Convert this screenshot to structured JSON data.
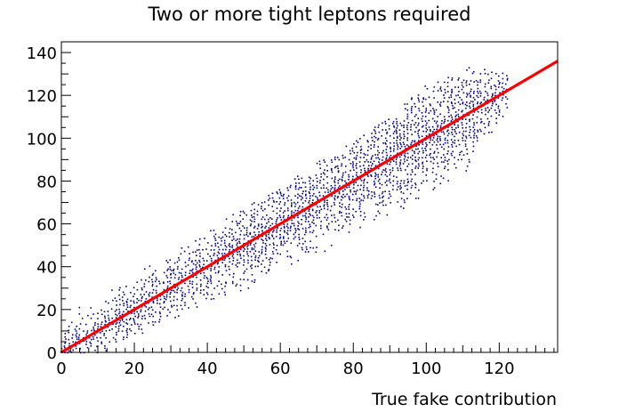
{
  "chart_data": {
    "type": "scatter",
    "title": "Two or more tight leptons required",
    "xlabel": "True fake contribution",
    "ylabel": "",
    "xlim": [
      0,
      136
    ],
    "ylim": [
      0,
      145
    ],
    "x_ticks": [
      0,
      20,
      40,
      60,
      80,
      100,
      120
    ],
    "y_ticks": [
      0,
      20,
      40,
      60,
      80,
      100,
      120,
      140
    ],
    "grid": false,
    "legend": "none",
    "colors": {
      "points": "#000080",
      "line": "#ff0000",
      "frame": "#000000"
    },
    "series": [
      {
        "type": "scatter-density",
        "description_band": "points scattered around y = x",
        "band_envelope": [
          {
            "x": 0,
            "y_min": 0,
            "y_max": 17
          },
          {
            "x": 10,
            "y_min": 0,
            "y_max": 26
          },
          {
            "x": 20,
            "y_min": 8,
            "y_max": 36
          },
          {
            "x": 30,
            "y_min": 16,
            "y_max": 46
          },
          {
            "x": 40,
            "y_min": 24,
            "y_max": 57
          },
          {
            "x": 50,
            "y_min": 30,
            "y_max": 67
          },
          {
            "x": 60,
            "y_min": 38,
            "y_max": 77
          },
          {
            "x": 70,
            "y_min": 46,
            "y_max": 88
          },
          {
            "x": 80,
            "y_min": 54,
            "y_max": 98
          },
          {
            "x": 90,
            "y_min": 64,
            "y_max": 110
          },
          {
            "x": 100,
            "y_min": 72,
            "y_max": 126
          },
          {
            "x": 110,
            "y_min": 82,
            "y_max": 134
          },
          {
            "x": 122,
            "y_min": 112,
            "y_max": 130
          }
        ]
      },
      {
        "type": "line",
        "x": [
          0,
          136
        ],
        "y": [
          0,
          136
        ]
      }
    ]
  }
}
